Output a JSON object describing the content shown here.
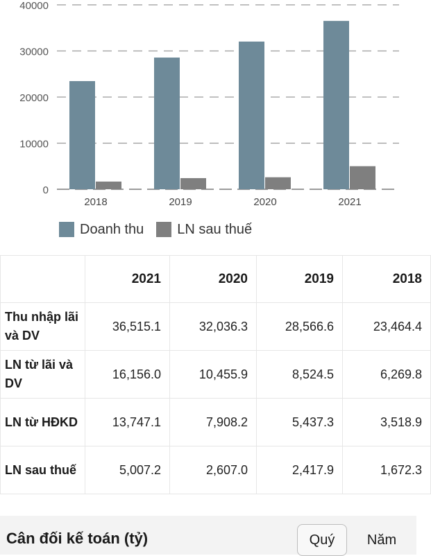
{
  "chart_data": {
    "type": "bar",
    "categories": [
      "2018",
      "2019",
      "2020",
      "2021"
    ],
    "series": [
      {
        "name": "Doanh thu",
        "values": [
          23464.4,
          28566.6,
          32036.3,
          36515.1
        ],
        "color": "#6e8a99"
      },
      {
        "name": "LN sau thuế",
        "values": [
          1672.3,
          2417.9,
          2607.0,
          5007.2
        ],
        "color": "#7f7f7f"
      }
    ],
    "yticks": [
      "0",
      "10000",
      "20000",
      "30000",
      "40000"
    ],
    "ylim": [
      0,
      40000
    ],
    "grid": true,
    "legend_position": "bottom-left"
  },
  "table": {
    "headers": [
      "",
      "2021",
      "2020",
      "2019",
      "2018"
    ],
    "rows": [
      {
        "label": "Thu nhập lãi và DV",
        "values": [
          "36,515.1",
          "32,036.3",
          "28,566.6",
          "23,464.4"
        ]
      },
      {
        "label": "LN từ lãi và DV",
        "values": [
          "16,156.0",
          "10,455.9",
          "8,524.5",
          "6,269.8"
        ]
      },
      {
        "label": "LN từ HĐKD",
        "values": [
          "13,747.1",
          "7,908.2",
          "5,437.3",
          "3,518.9"
        ]
      },
      {
        "label": "LN sau thuế",
        "values": [
          "5,007.2",
          "2,607.0",
          "2,417.9",
          "1,672.3"
        ]
      }
    ]
  },
  "section": {
    "title": "Cân đối kế toán (tỷ)",
    "buttons": [
      "Quý",
      "Năm"
    ]
  }
}
